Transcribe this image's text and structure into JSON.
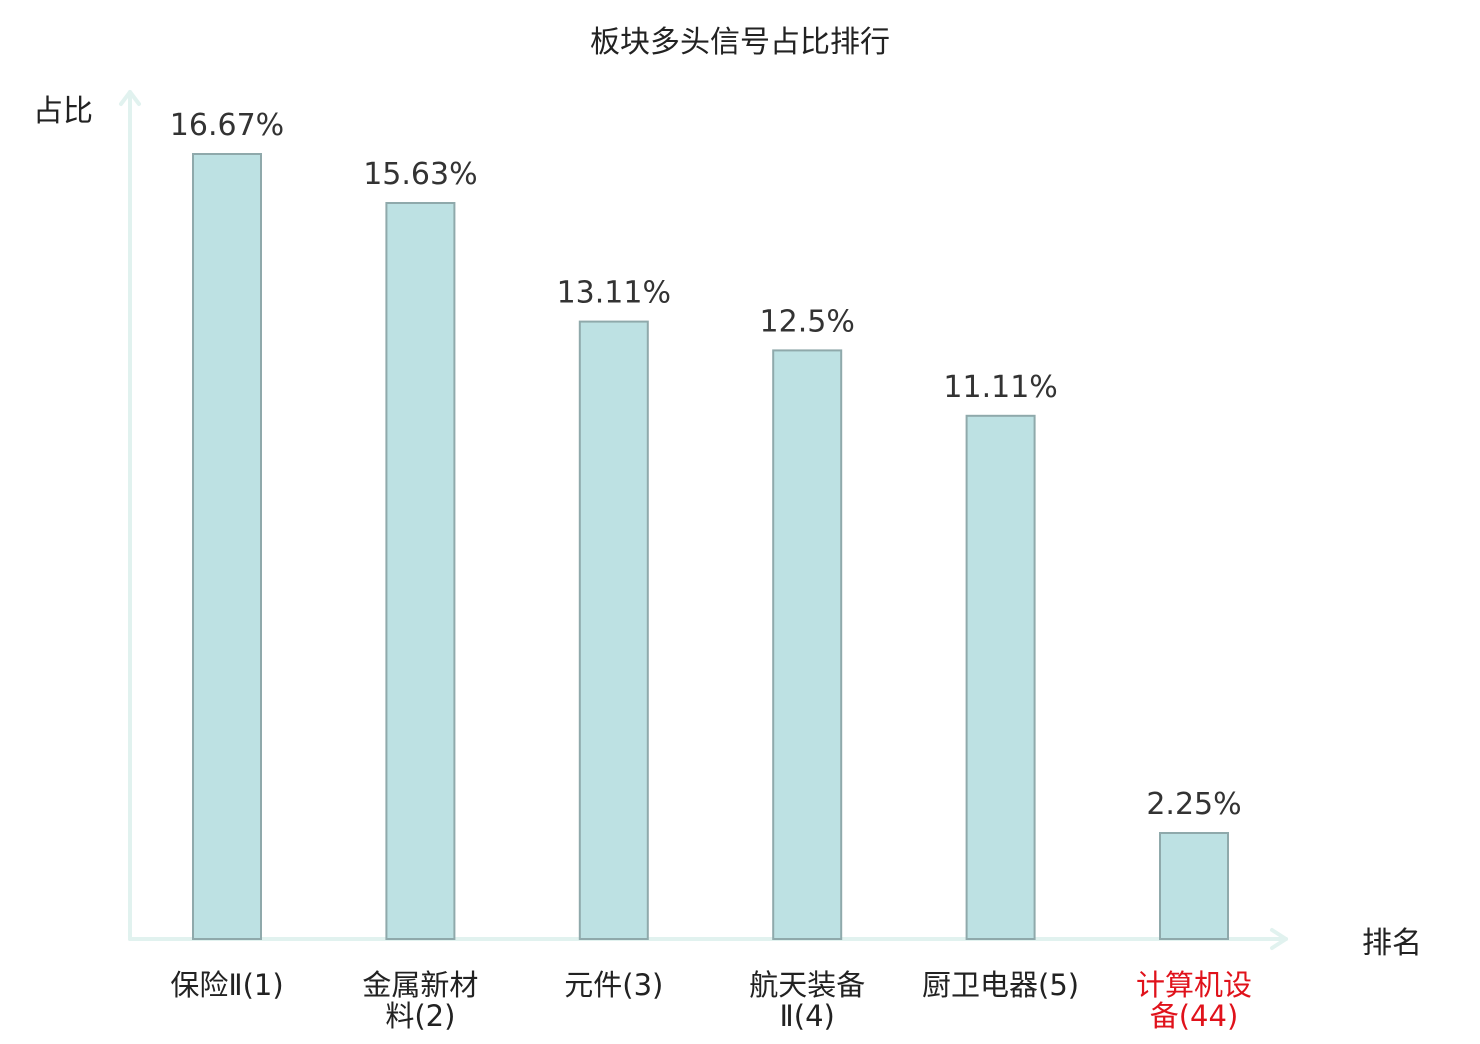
{
  "chart_data": {
    "type": "bar",
    "title": "板块多头信号占比排行",
    "ylabel": "占比",
    "xlabel": "排名",
    "categories": [
      [
        "保险Ⅱ(1)"
      ],
      [
        "金属新材",
        "料(2)"
      ],
      [
        "元件(3)"
      ],
      [
        "航天装备",
        "Ⅱ(4)"
      ],
      [
        "厨卫电器(5)"
      ],
      [
        "计算机设",
        "备(44)"
      ]
    ],
    "values": [
      16.67,
      15.63,
      13.11,
      12.5,
      11.11,
      2.25
    ],
    "value_labels": [
      "16.67%",
      "15.63%",
      "13.11%",
      "12.5%",
      "11.11%",
      "2.25%"
    ],
    "highlight_index": 5,
    "ylim": [
      0,
      16.67
    ],
    "grid": false,
    "colors": {
      "bar_fill": "#bde1e3",
      "bar_stroke": "#8fa9ab",
      "axis": "#e1f2ef",
      "text": "#222222",
      "value_label": "#333333",
      "highlight": "#e0121b"
    }
  }
}
